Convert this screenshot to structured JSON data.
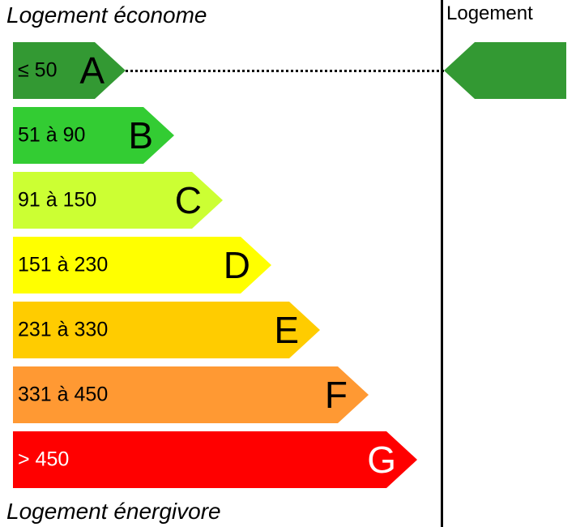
{
  "label_top": "Logement économe",
  "label_bottom": "Logement énergivore",
  "column_header": "Logement",
  "classes": [
    {
      "letter": "A",
      "range": "≤ 50",
      "color": "#339933"
    },
    {
      "letter": "B",
      "range": "51 à 90",
      "color": "#33cc33"
    },
    {
      "letter": "C",
      "range": "91 à 150",
      "color": "#ccff33"
    },
    {
      "letter": "D",
      "range": "151 à 230",
      "color": "#ffff00"
    },
    {
      "letter": "E",
      "range": "231 à 330",
      "color": "#ffcc00"
    },
    {
      "letter": "F",
      "range": "331 à 450",
      "color": "#ff9933"
    },
    {
      "letter": "G",
      "range": "> 450",
      "color": "#ff0000"
    }
  ],
  "current_class": "A",
  "indicator_color": "#339933"
}
